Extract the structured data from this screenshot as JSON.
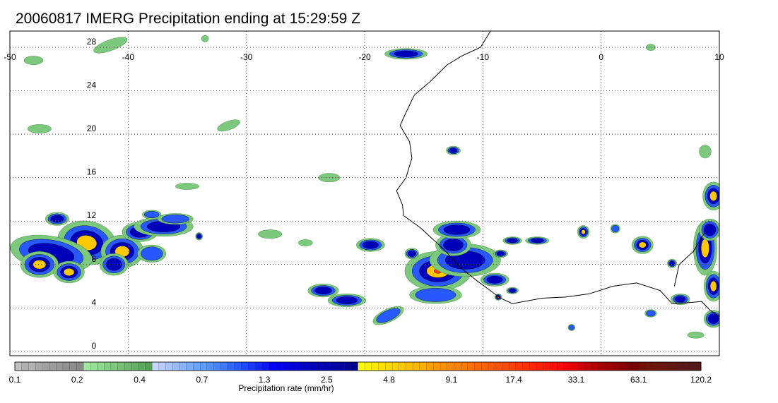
{
  "title": "20060817 IMERG Precipitation ending at 15:29:59 Z",
  "map": {
    "lon_range": [
      -50,
      10
    ],
    "lat_range": [
      -0.4,
      29.5
    ],
    "lon_ticks": [
      {
        "value": -50,
        "label": "-50"
      },
      {
        "value": -40,
        "label": "-40"
      },
      {
        "value": -30,
        "label": "-30"
      },
      {
        "value": -20,
        "label": "-20"
      },
      {
        "value": -10,
        "label": "-10"
      },
      {
        "value": 0,
        "label": "0"
      },
      {
        "value": 10,
        "label": "10"
      }
    ],
    "lat_ticks": [
      {
        "value": 0,
        "label": "0"
      },
      {
        "value": 4,
        "label": "4"
      },
      {
        "value": 8,
        "label": "8"
      },
      {
        "value": 12,
        "label": "12"
      },
      {
        "value": 16,
        "label": "16"
      },
      {
        "value": 20,
        "label": "20"
      },
      {
        "value": 24,
        "label": "24"
      },
      {
        "value": 28,
        "label": "28"
      }
    ],
    "grid": "dotted"
  },
  "colorbar": {
    "label": "Precipitation rate (mm/hr)",
    "colors": [
      "#c0c0c0",
      "#b0b0b0",
      "#b2b2b2",
      "#a8a8a8",
      "#a2a2a2",
      "#9c9c9c",
      "#989898",
      "#909090",
      "#8c8c8c",
      "#888888",
      "#a0e8a0",
      "#96e096",
      "#8cd88c",
      "#84d084",
      "#7cc87c",
      "#74c074",
      "#6cb86c",
      "#64b064",
      "#5ca85c",
      "#58a058",
      "#c8d8ff",
      "#b8ccff",
      "#a8c4ff",
      "#98bcff",
      "#88b4ff",
      "#78acff",
      "#68a4ff",
      "#5c9cff",
      "#5090ff",
      "#4884ff",
      "#3c78ff",
      "#3068ff",
      "#2858ff",
      "#2048ff",
      "#1838ff",
      "#1028ff",
      "#0818ff",
      "#0000ff",
      "#0000f0",
      "#0000e0",
      "#0000d8",
      "#0000d0",
      "#0000c8",
      "#0000c0",
      "#0000b8",
      "#0000b0",
      "#0000a8",
      "#0000a0",
      "#000098",
      "#000090",
      "#ffff00",
      "#fff000",
      "#ffe800",
      "#ffe000",
      "#ffd800",
      "#ffd000",
      "#ffc800",
      "#ffc000",
      "#ffb800",
      "#ffb000",
      "#ffa000",
      "#ff9800",
      "#ff9000",
      "#ff8800",
      "#ff8000",
      "#ff7800",
      "#ff7000",
      "#ff6800",
      "#ff6000",
      "#ff5800",
      "#ff5000",
      "#ff4800",
      "#ff4000",
      "#ff3800",
      "#ff3000",
      "#ff2800",
      "#ff2000",
      "#ff1800",
      "#ff1000",
      "#ff0800",
      "#f00000",
      "#e00000",
      "#d00000",
      "#c40000",
      "#b80000",
      "#ac0000",
      "#a00000",
      "#940000",
      "#880000",
      "#7c0000",
      "#780000",
      "#741000",
      "#701408",
      "#6c1808",
      "#681810",
      "#641810",
      "#601814",
      "#5c1818",
      "#581818",
      "#541818"
    ],
    "tick_labels": [
      "0.1",
      "0.2",
      "0.4",
      "0.7",
      "1.3",
      "2.5",
      "4.8",
      "9.1",
      "17.4",
      "33.1",
      "63.1",
      "120.2"
    ]
  },
  "precip_cells": [
    {
      "lon": -43.5,
      "lat": 10.0,
      "rx": 2.5,
      "ry": 2.0,
      "max": 3,
      "rot": 10
    },
    {
      "lon": -46.5,
      "lat": 9.0,
      "rx": 3.5,
      "ry": 1.6,
      "max": 2,
      "rot": 10
    },
    {
      "lon": -47.5,
      "lat": 8.0,
      "rx": 1.6,
      "ry": 1.2,
      "max": 3,
      "rot": 0
    },
    {
      "lon": -45.0,
      "lat": 7.3,
      "rx": 1.3,
      "ry": 1.0,
      "max": 3,
      "rot": 0
    },
    {
      "lon": -46.0,
      "lat": 12.2,
      "rx": 1.0,
      "ry": 0.6,
      "max": 2,
      "rot": 0
    },
    {
      "lon": -40.5,
      "lat": 9.2,
      "rx": 1.8,
      "ry": 1.5,
      "max": 3,
      "rot": 0
    },
    {
      "lon": -41.2,
      "lat": 8.0,
      "rx": 1.2,
      "ry": 1.0,
      "max": 2,
      "rot": 0
    },
    {
      "lon": -39.0,
      "lat": 11.0,
      "rx": 1.5,
      "ry": 0.9,
      "max": 2,
      "rot": 0
    },
    {
      "lon": -37.0,
      "lat": 11.5,
      "rx": 2.5,
      "ry": 0.9,
      "max": 2,
      "rot": 0
    },
    {
      "lon": -36.0,
      "lat": 12.2,
      "rx": 1.5,
      "ry": 0.5,
      "max": 1,
      "rot": 0
    },
    {
      "lon": -38.0,
      "lat": 12.6,
      "rx": 0.8,
      "ry": 0.4,
      "max": 1,
      "rot": 0
    },
    {
      "lon": -34.0,
      "lat": 10.6,
      "rx": 0.3,
      "ry": 0.35,
      "max": 2,
      "rot": 0
    },
    {
      "lon": -13.8,
      "lat": 7.4,
      "rx": 2.8,
      "ry": 1.8,
      "max": 4,
      "rot": 0
    },
    {
      "lon": -11.5,
      "lat": 8.4,
      "rx": 3.0,
      "ry": 1.5,
      "max": 2,
      "rot": 0
    },
    {
      "lon": -12.5,
      "lat": 9.8,
      "rx": 1.5,
      "ry": 1.0,
      "max": 2,
      "rot": 0
    },
    {
      "lon": -12.2,
      "lat": 11.2,
      "rx": 2.0,
      "ry": 0.8,
      "max": 2,
      "rot": 0
    },
    {
      "lon": -14.0,
      "lat": 5.2,
      "rx": 2.2,
      "ry": 0.8,
      "max": 1,
      "rot": 0
    },
    {
      "lon": -9.0,
      "lat": 6.6,
      "rx": 1.2,
      "ry": 0.6,
      "max": 2,
      "rot": 0
    },
    {
      "lon": -7.5,
      "lat": 5.6,
      "rx": 0.5,
      "ry": 0.3,
      "max": 2,
      "rot": 0
    },
    {
      "lon": -8.7,
      "lat": 5.0,
      "rx": 0.3,
      "ry": 0.3,
      "max": 4,
      "rot": 0
    },
    {
      "lon": -8.5,
      "lat": 9.0,
      "rx": 0.6,
      "ry": 0.35,
      "max": 2,
      "rot": 0
    },
    {
      "lon": -7.5,
      "lat": 10.2,
      "rx": 0.8,
      "ry": 0.35,
      "max": 2,
      "rot": 0
    },
    {
      "lon": -19.5,
      "lat": 9.8,
      "rx": 1.2,
      "ry": 0.6,
      "max": 2,
      "rot": 0
    },
    {
      "lon": -16.0,
      "lat": 9.0,
      "rx": 0.6,
      "ry": 0.5,
      "max": 2,
      "rot": 0
    },
    {
      "lon": -23.5,
      "lat": 5.6,
      "rx": 1.3,
      "ry": 0.6,
      "max": 2,
      "rot": 0
    },
    {
      "lon": -21.5,
      "lat": 4.7,
      "rx": 1.6,
      "ry": 0.6,
      "max": 2,
      "rot": 0
    },
    {
      "lon": -18.0,
      "lat": 3.3,
      "rx": 1.4,
      "ry": 0.6,
      "max": 1,
      "rot": -25
    },
    {
      "lon": -16.5,
      "lat": 27.4,
      "rx": 1.8,
      "ry": 0.5,
      "max": 2,
      "rot": 0
    },
    {
      "lon": -38.0,
      "lat": 9.0,
      "rx": 1.2,
      "ry": 0.8,
      "max": 1,
      "rot": 0
    },
    {
      "lon": -41.5,
      "lat": 28.2,
      "rx": 1.5,
      "ry": 0.5,
      "max": 0,
      "rot": -20
    },
    {
      "lon": -31.5,
      "lat": 20.8,
      "rx": 1.0,
      "ry": 0.4,
      "max": 0,
      "rot": -20
    },
    {
      "lon": -47.5,
      "lat": 20.5,
      "rx": 1.0,
      "ry": 0.4,
      "max": 0,
      "rot": 0
    },
    {
      "lon": -12.5,
      "lat": 18.5,
      "rx": 0.6,
      "ry": 0.4,
      "max": 2,
      "rot": 0
    },
    {
      "lon": 3.5,
      "lat": 9.8,
      "rx": 0.9,
      "ry": 0.8,
      "max": 3,
      "rot": 0
    },
    {
      "lon": 6.0,
      "lat": 8.1,
      "rx": 0.4,
      "ry": 0.4,
      "max": 2,
      "rot": 0
    },
    {
      "lon": 8.8,
      "lat": 9.5,
      "rx": 1.0,
      "ry": 2.5,
      "max": 3,
      "rot": 0
    },
    {
      "lon": 9.5,
      "lat": 14.3,
      "rx": 0.9,
      "ry": 1.3,
      "max": 3,
      "rot": 0
    },
    {
      "lon": 9.2,
      "lat": 11.2,
      "rx": 0.9,
      "ry": 1.0,
      "max": 2,
      "rot": 0
    },
    {
      "lon": 9.5,
      "lat": 6.0,
      "rx": 0.8,
      "ry": 1.4,
      "max": 3,
      "rot": 0
    },
    {
      "lon": 9.5,
      "lat": 3.0,
      "rx": 0.8,
      "ry": 0.8,
      "max": 2,
      "rot": 0
    },
    {
      "lon": 6.7,
      "lat": 4.8,
      "rx": 0.8,
      "ry": 0.5,
      "max": 2,
      "rot": 0
    },
    {
      "lon": -1.5,
      "lat": 11.0,
      "rx": 0.5,
      "ry": 0.6,
      "max": 3,
      "rot": 0
    },
    {
      "lon": 1.2,
      "lat": 11.3,
      "rx": 0.4,
      "ry": 0.4,
      "max": 1,
      "rot": 0
    },
    {
      "lon": -5.4,
      "lat": 10.2,
      "rx": 1.0,
      "ry": 0.35,
      "max": 2,
      "rot": 0
    },
    {
      "lon": 4.2,
      "lat": 3.5,
      "rx": 0.5,
      "ry": 0.35,
      "max": 1,
      "rot": 0
    },
    {
      "lon": -28.0,
      "lat": 10.8,
      "rx": 1.0,
      "ry": 0.4,
      "max": 0,
      "rot": 0
    },
    {
      "lon": -35.0,
      "lat": 15.2,
      "rx": 1.0,
      "ry": 0.3,
      "max": 0,
      "rot": 0
    },
    {
      "lon": -23.0,
      "lat": 16.0,
      "rx": 0.9,
      "ry": 0.4,
      "max": 0,
      "rot": 0
    },
    {
      "lon": -2.5,
      "lat": 2.2,
      "rx": 0.3,
      "ry": 0.3,
      "max": 1,
      "rot": 0
    },
    {
      "lon": 8.0,
      "lat": 1.5,
      "rx": 0.7,
      "ry": 0.3,
      "max": 0,
      "rot": 0
    },
    {
      "lon": -48.0,
      "lat": 26.8,
      "rx": 0.8,
      "ry": 0.4,
      "max": 0,
      "rot": 0
    },
    {
      "lon": 4.2,
      "lat": 28.0,
      "rx": 0.4,
      "ry": 0.3,
      "max": 0,
      "rot": 0
    },
    {
      "lon": -33.5,
      "lat": 28.8,
      "rx": 0.3,
      "ry": 0.3,
      "max": 0,
      "rot": 0
    },
    {
      "lon": 8.8,
      "lat": 18.4,
      "rx": 0.5,
      "ry": 0.6,
      "max": 0,
      "rot": 0
    },
    {
      "lon": -25.0,
      "lat": 10.0,
      "rx": 0.6,
      "ry": 0.3,
      "max": 0,
      "rot": 0
    }
  ],
  "coastlines": [
    {
      "name": "africa-west",
      "points": [
        [
          -9.3,
          29.6
        ],
        [
          -10.2,
          28.0
        ],
        [
          -11.8,
          27.2
        ],
        [
          -13.0,
          26.4
        ],
        [
          -14.5,
          24.8
        ],
        [
          -15.8,
          23.6
        ],
        [
          -16.5,
          22.0
        ],
        [
          -17.0,
          20.8
        ],
        [
          -16.2,
          19.3
        ],
        [
          -16.0,
          17.8
        ],
        [
          -16.5,
          16.0
        ],
        [
          -17.3,
          14.8
        ],
        [
          -16.8,
          13.5
        ],
        [
          -16.7,
          12.5
        ],
        [
          -15.3,
          11.4
        ],
        [
          -14.5,
          10.6
        ],
        [
          -13.2,
          9.3
        ],
        [
          -12.0,
          7.8
        ],
        [
          -10.5,
          6.5
        ],
        [
          -8.5,
          4.9
        ],
        [
          -7.5,
          4.4
        ],
        [
          -5.0,
          4.9
        ],
        [
          -3.0,
          5.0
        ],
        [
          -1.0,
          5.3
        ],
        [
          1.0,
          6.0
        ],
        [
          3.0,
          6.3
        ],
        [
          5.0,
          5.6
        ],
        [
          6.0,
          4.4
        ],
        [
          7.5,
          4.5
        ],
        [
          8.5,
          4.6
        ],
        [
          9.2,
          3.8
        ],
        [
          10.0,
          3.2
        ]
      ]
    },
    {
      "name": "africa-rivers",
      "points": [
        [
          8.8,
          11.0
        ],
        [
          7.8,
          9.2
        ],
        [
          6.6,
          8.0
        ],
        [
          6.2,
          6.0
        ]
      ]
    }
  ]
}
